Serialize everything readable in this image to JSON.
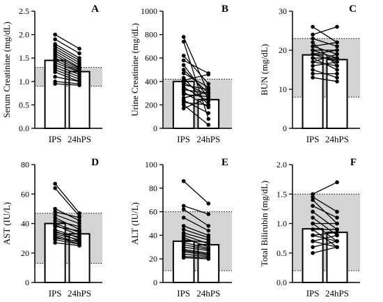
{
  "chart_data": [
    {
      "type": "bar",
      "panel_letter": "A",
      "ylabel": "Serum Creatinine (mg/dL)",
      "categories": [
        "IPS",
        "24hPS"
      ],
      "ylim": [
        0,
        2.5
      ],
      "yticks": [
        "0.0",
        "0.5",
        "1.0",
        "1.5",
        "2.0",
        "2.5"
      ],
      "bar_values": [
        1.45,
        1.21
      ],
      "reference_range": [
        0.9,
        1.3
      ],
      "pairs": [
        [
          2.0,
          1.7
        ],
        [
          1.9,
          1.6
        ],
        [
          1.8,
          1.5
        ],
        [
          1.75,
          1.45
        ],
        [
          1.7,
          1.4
        ],
        [
          1.65,
          1.35
        ],
        [
          1.6,
          1.3
        ],
        [
          1.55,
          1.28
        ],
        [
          1.5,
          1.25
        ],
        [
          1.45,
          1.22
        ],
        [
          1.4,
          1.2
        ],
        [
          1.35,
          1.15
        ],
        [
          1.3,
          1.1
        ],
        [
          1.25,
          1.05
        ],
        [
          1.2,
          1.0
        ],
        [
          1.1,
          1.0
        ],
        [
          1.0,
          0.95
        ],
        [
          0.95,
          0.92
        ]
      ]
    },
    {
      "type": "bar",
      "panel_letter": "B",
      "ylabel": "Urine Creatinine (mg/dL)",
      "categories": [
        "IPS",
        "24hPS"
      ],
      "ylim": [
        0,
        1000
      ],
      "yticks": [
        "0",
        "200",
        "400",
        "600",
        "800",
        "1000"
      ],
      "bar_values": [
        400,
        245
      ],
      "reference_range": [
        0,
        420
      ],
      "pairs": [
        [
          780,
          300
        ],
        [
          740,
          80
        ],
        [
          620,
          380
        ],
        [
          580,
          470
        ],
        [
          540,
          260
        ],
        [
          500,
          300
        ],
        [
          470,
          350
        ],
        [
          430,
          200
        ],
        [
          410,
          460
        ],
        [
          390,
          280
        ],
        [
          370,
          330
        ],
        [
          350,
          230
        ],
        [
          330,
          300
        ],
        [
          310,
          180
        ],
        [
          290,
          270
        ],
        [
          260,
          310
        ],
        [
          240,
          130
        ],
        [
          220,
          200
        ],
        [
          200,
          30
        ],
        [
          170,
          260
        ]
      ]
    },
    {
      "type": "bar",
      "panel_letter": "C",
      "ylabel": "BUN (mg/dL)",
      "categories": [
        "IPS",
        "24hPS"
      ],
      "ylim": [
        0,
        30
      ],
      "yticks": [
        "0",
        "10",
        "20",
        "30"
      ],
      "bar_values": [
        18.8,
        17.6
      ],
      "reference_range": [
        8,
        23
      ],
      "pairs": [
        [
          26,
          22
        ],
        [
          24,
          26
        ],
        [
          23,
          21
        ],
        [
          22,
          16
        ],
        [
          21,
          22
        ],
        [
          21,
          19
        ],
        [
          20,
          20
        ],
        [
          20,
          18
        ],
        [
          19,
          20
        ],
        [
          19,
          17
        ],
        [
          18,
          18
        ],
        [
          18,
          15
        ],
        [
          17,
          19
        ],
        [
          17,
          16
        ],
        [
          16,
          17
        ],
        [
          15,
          13
        ],
        [
          14,
          14
        ],
        [
          13,
          12
        ]
      ]
    },
    {
      "type": "bar",
      "panel_letter": "D",
      "ylabel": "AST (IU/L)",
      "categories": [
        "IPS",
        "24hPS"
      ],
      "ylim": [
        0,
        80
      ],
      "yticks": [
        "0",
        "20",
        "40",
        "60",
        "80"
      ],
      "bar_values": [
        40,
        33
      ],
      "reference_range": [
        13,
        47
      ],
      "pairs": [
        [
          67,
          47
        ],
        [
          64,
          45
        ],
        [
          50,
          42
        ],
        [
          48,
          44
        ],
        [
          46,
          40
        ],
        [
          44,
          36
        ],
        [
          42,
          38
        ],
        [
          40,
          34
        ],
        [
          39,
          32
        ],
        [
          38,
          35
        ],
        [
          36,
          30
        ],
        [
          35,
          28
        ],
        [
          34,
          31
        ],
        [
          33,
          29
        ],
        [
          32,
          27
        ],
        [
          31,
          26
        ],
        [
          30,
          28
        ],
        [
          29,
          26
        ],
        [
          27,
          25
        ]
      ]
    },
    {
      "type": "bar",
      "panel_letter": "E",
      "ylabel": "ALT (IU/L)",
      "categories": [
        "IPS",
        "24hPS"
      ],
      "ylim": [
        0,
        100
      ],
      "yticks": [
        "0",
        "20",
        "40",
        "60",
        "80",
        "100"
      ],
      "bar_values": [
        35,
        32
      ],
      "reference_range": [
        10,
        60
      ],
      "pairs": [
        [
          86,
          67
        ],
        [
          65,
          58
        ],
        [
          62,
          48
        ],
        [
          55,
          44
        ],
        [
          48,
          40
        ],
        [
          45,
          38
        ],
        [
          42,
          36
        ],
        [
          40,
          33
        ],
        [
          38,
          30
        ],
        [
          36,
          34
        ],
        [
          34,
          29
        ],
        [
          32,
          28
        ],
        [
          30,
          27
        ],
        [
          28,
          25
        ],
        [
          27,
          24
        ],
        [
          26,
          23
        ],
        [
          24,
          22
        ],
        [
          22,
          21
        ],
        [
          21,
          20
        ]
      ]
    },
    {
      "type": "bar",
      "panel_letter": "F",
      "ylabel": "Total Bilirubin (mg/dL)",
      "categories": [
        "IPS",
        "24hPS"
      ],
      "ylim": [
        0,
        2.0
      ],
      "yticks": [
        "0.0",
        "0.5",
        "1.0",
        "1.5",
        "2.0"
      ],
      "bar_values": [
        0.91,
        0.85
      ],
      "reference_range": [
        0.2,
        1.5
      ],
      "pairs": [
        [
          1.5,
          1.7
        ],
        [
          1.45,
          1.2
        ],
        [
          1.4,
          1.0
        ],
        [
          1.3,
          1.1
        ],
        [
          1.2,
          0.9
        ],
        [
          1.1,
          0.8
        ],
        [
          1.0,
          1.0
        ],
        [
          1.0,
          0.7
        ],
        [
          0.9,
          0.9
        ],
        [
          0.9,
          0.6
        ],
        [
          0.8,
          0.85
        ],
        [
          0.8,
          0.7
        ],
        [
          0.7,
          0.8
        ],
        [
          0.7,
          0.6
        ],
        [
          0.6,
          0.7
        ],
        [
          0.5,
          0.6
        ]
      ]
    }
  ]
}
